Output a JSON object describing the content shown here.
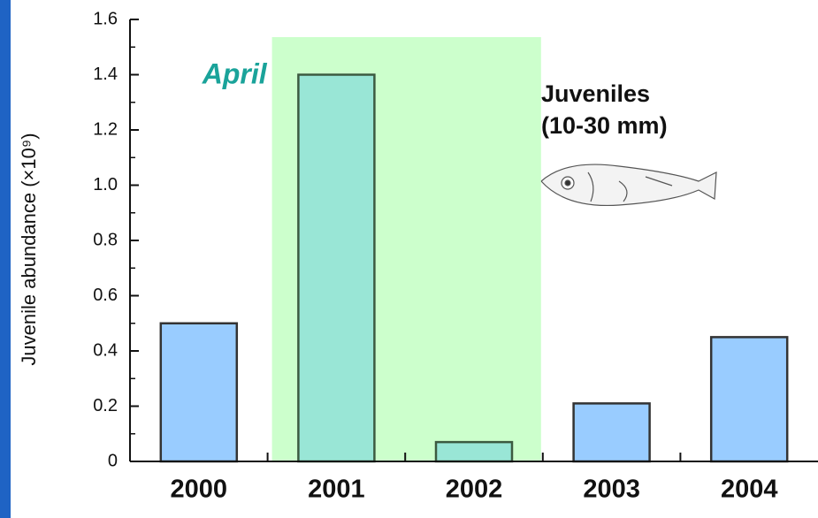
{
  "chart_data": {
    "type": "bar",
    "y_label": "Juvenile abundance (×10⁹)",
    "categories": [
      "2000",
      "2001",
      "2002",
      "2003",
      "2004"
    ],
    "values": [
      0.5,
      1.4,
      0.07,
      0.21,
      0.45
    ],
    "color": "#99ccff",
    "ylim": [
      0,
      1.6
    ],
    "yticks": [
      0,
      0.2,
      0.4,
      0.6,
      0.8,
      {
        "value": 1,
        "label": "1.0"
      },
      1.2,
      1.4,
      1.6
    ],
    "highlight_label": "April",
    "highlight_categories": [
      "2001",
      "2002"
    ],
    "highlight_color": "#ccffcc",
    "annotation": [
      "Juveniles",
      "(10-30 mm)"
    ]
  }
}
